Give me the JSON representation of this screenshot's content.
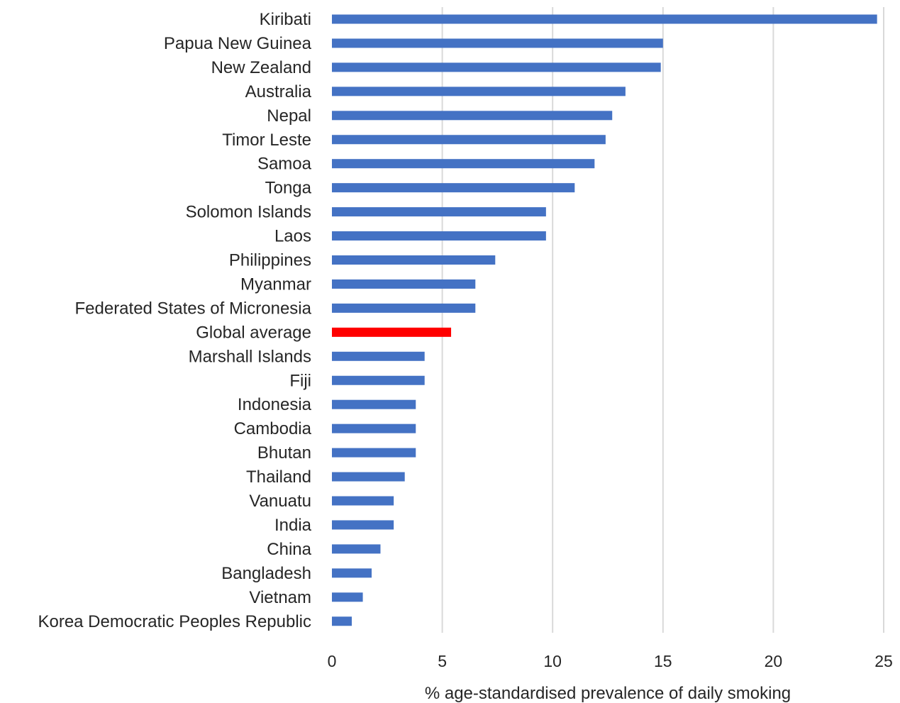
{
  "chart_data": {
    "type": "bar",
    "orientation": "horizontal",
    "categories": [
      "Kiribati",
      "Papua New Guinea",
      "New Zealand",
      "Australia",
      "Nepal",
      "Timor Leste",
      "Samoa",
      "Tonga",
      "Solomon Islands",
      "Laos",
      "Philippines",
      "Myanmar",
      "Federated States of Micronesia",
      "Global average",
      "Marshall Islands",
      "Fiji",
      "Indonesia",
      "Cambodia",
      "Bhutan",
      "Thailand",
      "Vanuatu",
      "India",
      "China",
      "Bangladesh",
      "Vietnam",
      "Korea Democratic Peoples Republic"
    ],
    "values": [
      24.7,
      15.0,
      14.9,
      13.3,
      12.7,
      12.4,
      11.9,
      11.0,
      9.7,
      9.7,
      7.4,
      6.5,
      6.5,
      5.4,
      4.2,
      4.2,
      3.8,
      3.8,
      3.8,
      3.3,
      2.8,
      2.8,
      2.2,
      1.8,
      1.4,
      0.9
    ],
    "xlabel": "% age-standardised prevalence of daily smoking",
    "ylabel": "",
    "xlim": [
      0,
      25
    ],
    "xticks": [
      0,
      5,
      10,
      15,
      20,
      25
    ],
    "grid": "vertical",
    "legend": "none",
    "colors": {
      "bar": "#4472c4",
      "highlight": "#ff0000",
      "gridline": "#d9d9d9"
    },
    "highlight_category": "Global average"
  }
}
